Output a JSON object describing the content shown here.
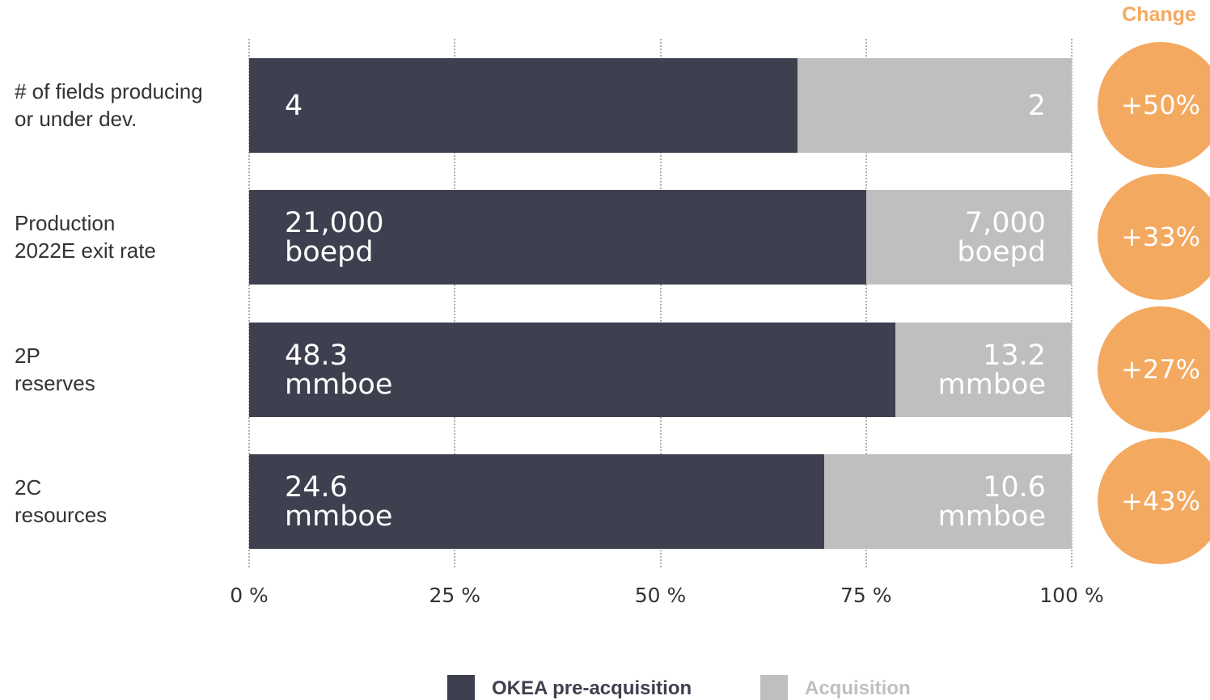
{
  "chart_data": {
    "type": "bar",
    "orientation": "horizontal",
    "stacking": "percent",
    "categories": [
      "# of fields producing\nor under dev.",
      "Production\n2022E exit rate",
      "2P\nreserves",
      "2C\nresources"
    ],
    "series": [
      {
        "name": "OKEA pre-acquisition",
        "color": "#3f404f",
        "values": [
          4,
          21000,
          48.3,
          24.6
        ],
        "value_labels": [
          "4",
          "21,000\nboepd",
          "48.3\nmmboe",
          "24.6\nmmboe"
        ]
      },
      {
        "name": "Acquisition",
        "color": "#bfbfbf",
        "values": [
          2,
          7000,
          13.2,
          10.6
        ],
        "value_labels": [
          "2",
          "7,000\nboepd",
          "13.2\nmmboe",
          "10.6\nmmboe"
        ]
      }
    ],
    "xlim": [
      0,
      100
    ],
    "xticks": [
      {
        "value": 0,
        "label": "0 %"
      },
      {
        "value": 25,
        "label": "25 %"
      },
      {
        "value": 50,
        "label": "50 %"
      },
      {
        "value": 75,
        "label": "75 %"
      },
      {
        "value": 100,
        "label": "100 %"
      }
    ],
    "grid": true,
    "change_title": "Change",
    "change_color": "#f4a960",
    "changes": [
      "+50%",
      "+33%",
      "+27%",
      "+43%"
    ]
  }
}
